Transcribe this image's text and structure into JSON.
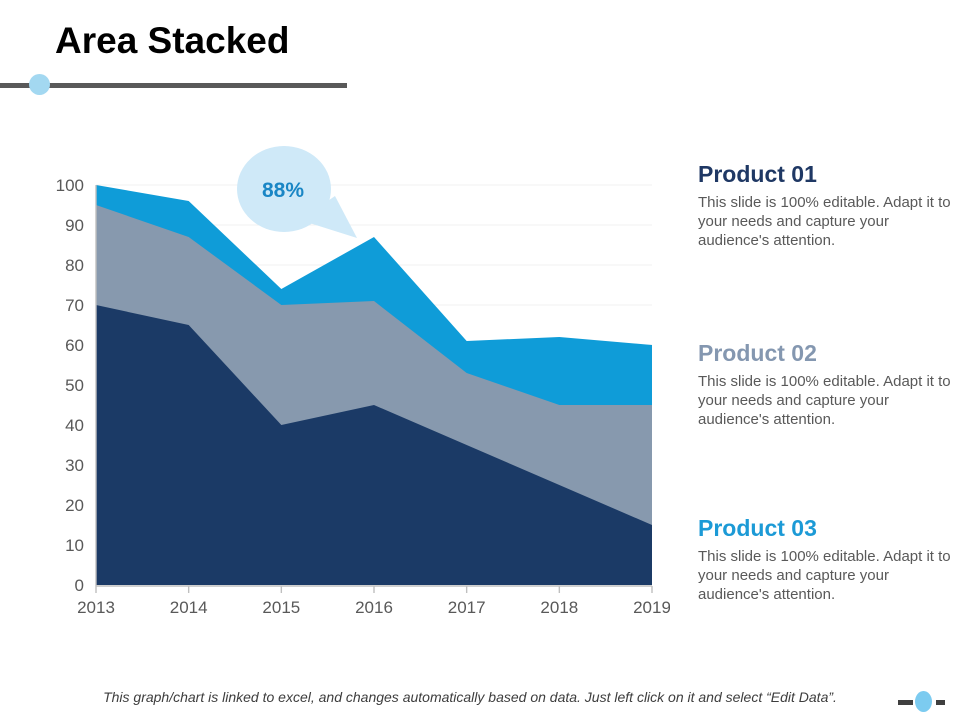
{
  "slide": {
    "title": "Area Stacked",
    "footer": "This graph/chart is linked to excel, and changes automatically based on data. Just left click on it and select “Edit Data”."
  },
  "products": [
    {
      "name": "Product 01",
      "heading_color": "#1f3864",
      "description": "This slide is 100% editable. Adapt it to your needs and capture your audience's attention."
    },
    {
      "name": "Product 02",
      "heading_color": "#8497b0",
      "description": "This slide is 100% editable. Adapt it to your needs and capture your audience's attention."
    },
    {
      "name": "Product 03",
      "heading_color": "#1c9ad6",
      "description": "This slide is 100% editable. Adapt it to your needs and capture your audience's attention."
    }
  ],
  "chart_data": {
    "type": "area",
    "stacked": true,
    "x": [
      "2013",
      "2014",
      "2015",
      "2016",
      "2017",
      "2018",
      "2019"
    ],
    "series": [
      {
        "name": "Product 01",
        "color": "#0f9cd8",
        "cumulative_top": [
          100,
          96,
          74,
          87,
          61,
          62,
          60
        ]
      },
      {
        "name": "Product 02",
        "color": "#8799ae",
        "cumulative_top": [
          95,
          87,
          70,
          71,
          53,
          45,
          45
        ]
      },
      {
        "name": "Product 03",
        "color": "#1b3a66",
        "cumulative_top": [
          70,
          65,
          40,
          45,
          35,
          25,
          15
        ]
      }
    ],
    "note": "cumulative_top values are the stacked totals read from the chart; bottom series is Product 03 (navy), middle Product 02 (gray), top Product 01 (blue)",
    "ylim": [
      0,
      100
    ],
    "ytick_step": 10,
    "grid": "horizontal",
    "gridline_color": "#f0f0f0",
    "axis_color": "#bfbfbf",
    "tick_label_color": "#595959",
    "annotation": {
      "text": "88%",
      "text_color": "#1a86c5",
      "bubble_color": "#cfe9f8",
      "points_to_x": "2016"
    }
  },
  "decor": {
    "title_rule_color": "#595959",
    "title_dot_color": "#a3d8f1",
    "bottom_oval_color": "#7ccbf0",
    "bottom_dash_color": "#3f3f3f"
  }
}
